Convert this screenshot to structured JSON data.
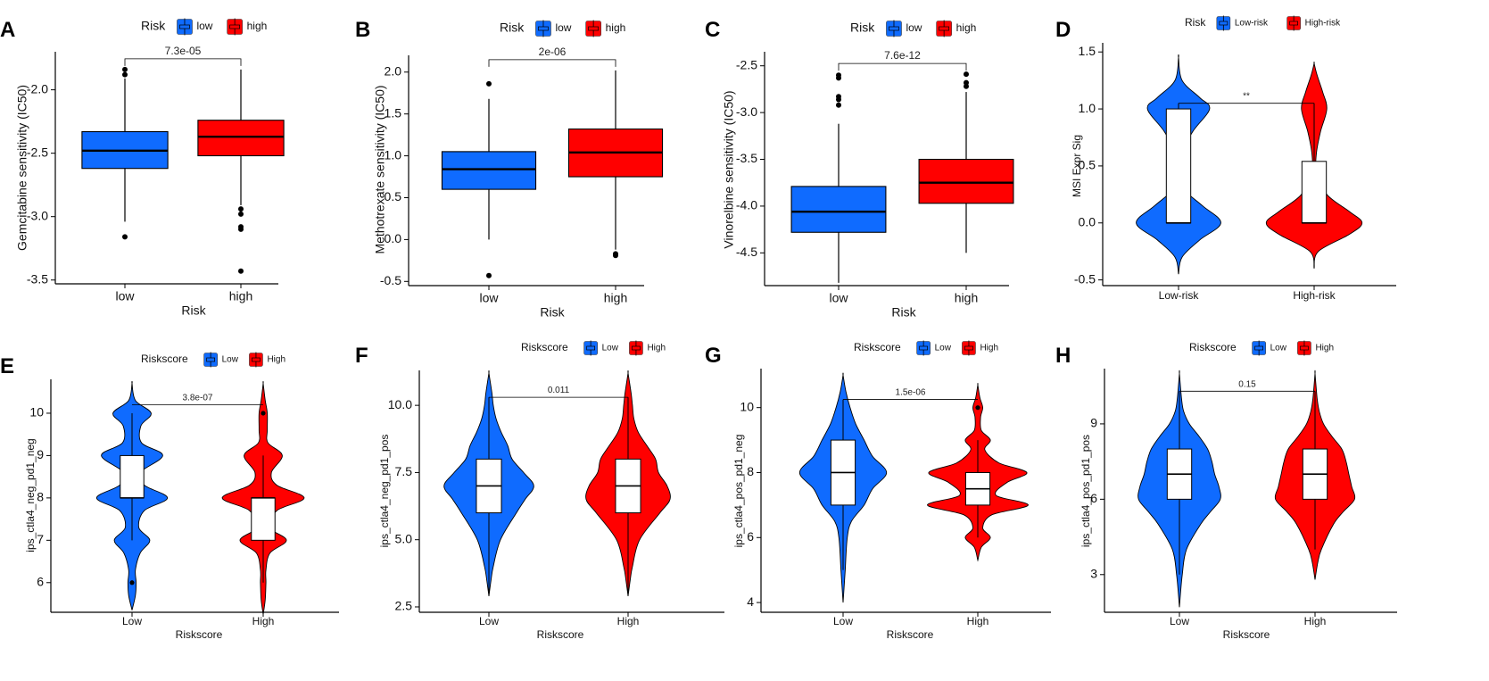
{
  "colors": {
    "low": "#0f6bff",
    "high": "#ff0000",
    "axis": "#000000"
  },
  "chart_data": [
    {
      "panel": "A",
      "type": "box",
      "legend_title": "Risk",
      "legend_labels": [
        "low",
        "high"
      ],
      "categories": [
        "low",
        "high"
      ],
      "xlabel": "Risk",
      "ylabel": "Gemcitabine sensitivity (IC50)",
      "ylim": [
        -3.53,
        -1.7
      ],
      "yticks": [
        -3.5,
        -3.0,
        -2.5,
        -2.0
      ],
      "ytick_labels": [
        "-3.5",
        "-3.0",
        "-2.5",
        "-2.0"
      ],
      "pvalue": "7.3e-05",
      "boxes": [
        {
          "q1": -2.62,
          "median": -2.48,
          "q3": -2.33,
          "whisker_low": -3.04,
          "whisker_high": -1.91,
          "outliers": [
            -1.84,
            -1.88,
            -3.16
          ]
        },
        {
          "q1": -2.52,
          "median": -2.37,
          "q3": -2.24,
          "whisker_low": -2.91,
          "whisker_high": -1.84,
          "outliers": [
            -2.94,
            -2.98,
            -3.08,
            -3.1,
            -3.43
          ]
        }
      ]
    },
    {
      "panel": "B",
      "type": "box",
      "legend_title": "Risk",
      "legend_labels": [
        "low",
        "high"
      ],
      "categories": [
        "low",
        "high"
      ],
      "xlabel": "Risk",
      "ylabel": "Methotrexate sensitivity (IC50)",
      "ylim": [
        -0.55,
        2.2
      ],
      "yticks": [
        -0.5,
        0.0,
        0.5,
        1.0,
        1.5,
        2.0
      ],
      "ytick_labels": [
        "-0.5",
        "0.0",
        "0.5",
        "1.0",
        "1.5",
        "2.0"
      ],
      "pvalue": "2e-06",
      "boxes": [
        {
          "q1": 0.6,
          "median": 0.84,
          "q3": 1.05,
          "whisker_low": 0.0,
          "whisker_high": 1.68,
          "outliers": [
            1.86,
            -0.43
          ]
        },
        {
          "q1": 0.75,
          "median": 1.04,
          "q3": 1.32,
          "whisker_low": -0.12,
          "whisker_high": 2.02,
          "outliers": [
            -0.17,
            -0.19
          ]
        }
      ]
    },
    {
      "panel": "C",
      "type": "box",
      "legend_title": "Risk",
      "legend_labels": [
        "low",
        "high"
      ],
      "categories": [
        "low",
        "high"
      ],
      "xlabel": "Risk",
      "ylabel": "Vinorelbine sensitivity (IC50)",
      "ylim": [
        -4.85,
        -2.35
      ],
      "yticks": [
        -4.5,
        -4.0,
        -3.5,
        -3.0,
        -2.5
      ],
      "ytick_labels": [
        "-4.5",
        "-4.0",
        "-3.5",
        "-3.0",
        "-2.5"
      ],
      "pvalue": "7.6e-12",
      "boxes": [
        {
          "q1": -4.28,
          "median": -4.06,
          "q3": -3.79,
          "whisker_low": -4.82,
          "whisker_high": -3.12,
          "outliers": [
            -2.6,
            -2.63,
            -2.83,
            -2.86,
            -2.92
          ]
        },
        {
          "q1": -3.97,
          "median": -3.75,
          "q3": -3.5,
          "whisker_low": -4.5,
          "whisker_high": -2.78,
          "outliers": [
            -2.59,
            -2.68,
            -2.72
          ]
        }
      ]
    },
    {
      "panel": "D",
      "type": "violin",
      "legend_title": "Risk",
      "legend_labels": [
        "Low-risk",
        "High-risk"
      ],
      "categories": [
        "Low-risk",
        "High-risk"
      ],
      "xlabel": "",
      "ylabel": "MSI Expr Sig",
      "ylim": [
        -0.55,
        1.58
      ],
      "yticks": [
        -0.5,
        0.0,
        0.5,
        1.0,
        1.5
      ],
      "ytick_labels": [
        "-0.5",
        "0.0",
        "0.5",
        "1.0",
        "1.5"
      ],
      "pvalue": "**",
      "pvalue_y": 1.05,
      "violins": [
        {
          "profile": [
            [
              -0.45,
              0
            ],
            [
              -0.3,
              0.05
            ],
            [
              -0.15,
              0.3
            ],
            [
              0.0,
              0.6
            ],
            [
              0.15,
              0.34
            ],
            [
              0.3,
              0.07
            ],
            [
              0.45,
              0.03
            ],
            [
              0.6,
              0.04
            ],
            [
              0.8,
              0.2
            ],
            [
              1.0,
              0.44
            ],
            [
              1.1,
              0.3
            ],
            [
              1.25,
              0.05
            ],
            [
              1.45,
              0
            ]
          ],
          "q1": 0.0,
          "median": 0.0,
          "q3": 1.0,
          "whisker_low": 0.0,
          "whisker_high": 1.05,
          "outliers": []
        },
        {
          "profile": [
            [
              -0.4,
              0
            ],
            [
              -0.25,
              0.06
            ],
            [
              -0.1,
              0.5
            ],
            [
              0.0,
              0.68
            ],
            [
              0.1,
              0.5
            ],
            [
              0.25,
              0.18
            ],
            [
              0.45,
              0.04
            ],
            [
              0.6,
              0.03
            ],
            [
              0.8,
              0.09
            ],
            [
              1.0,
              0.18
            ],
            [
              1.15,
              0.12
            ],
            [
              1.3,
              0.04
            ],
            [
              1.4,
              0
            ]
          ],
          "q1": 0.0,
          "median": 0.0,
          "q3": 0.54,
          "whisker_low": 0.0,
          "whisker_high": 1.05,
          "outliers": []
        }
      ]
    },
    {
      "panel": "E",
      "type": "violin",
      "legend_title": "Riskscore",
      "legend_labels": [
        "Low",
        "High"
      ],
      "categories": [
        "Low",
        "High"
      ],
      "xlabel": "Riskscore",
      "ylabel": "ips_ctla4_neg_pd1_neg",
      "ylim": [
        5.3,
        10.8
      ],
      "yticks": [
        6,
        7,
        8,
        9,
        10
      ],
      "ytick_labels": [
        "6",
        "7",
        "8",
        "9",
        "10"
      ],
      "pvalue": "3.8e-07",
      "pvalue_y": 10.2,
      "violins": [
        {
          "profile": [
            [
              5.35,
              0
            ],
            [
              5.7,
              0.05
            ],
            [
              6.0,
              0.06
            ],
            [
              6.3,
              0.05
            ],
            [
              6.7,
              0.12
            ],
            [
              7.0,
              0.26
            ],
            [
              7.3,
              0.1
            ],
            [
              7.7,
              0.18
            ],
            [
              8.0,
              0.52
            ],
            [
              8.3,
              0.18
            ],
            [
              8.6,
              0.12
            ],
            [
              9.0,
              0.45
            ],
            [
              9.3,
              0.14
            ],
            [
              9.7,
              0.13
            ],
            [
              10.0,
              0.28
            ],
            [
              10.3,
              0.05
            ],
            [
              10.7,
              0
            ]
          ],
          "q1": 8.0,
          "median": 8.0,
          "q3": 9.0,
          "whisker_low": 7.0,
          "whisker_high": 10.0,
          "outliers": [
            6.0
          ]
        },
        {
          "profile": [
            [
              5.25,
              0
            ],
            [
              5.6,
              0.03
            ],
            [
              6.0,
              0.04
            ],
            [
              6.3,
              0.04
            ],
            [
              6.7,
              0.1
            ],
            [
              7.0,
              0.34
            ],
            [
              7.3,
              0.1
            ],
            [
              7.7,
              0.2
            ],
            [
              8.0,
              0.6
            ],
            [
              8.3,
              0.2
            ],
            [
              8.6,
              0.12
            ],
            [
              9.0,
              0.28
            ],
            [
              9.3,
              0.07
            ],
            [
              9.6,
              0.06
            ],
            [
              10.0,
              0.06
            ],
            [
              10.3,
              0.03
            ],
            [
              10.7,
              0
            ]
          ],
          "q1": 7.0,
          "median": 8.0,
          "q3": 8.0,
          "whisker_low": 6.0,
          "whisker_high": 9.0,
          "outliers": [
            10.0
          ]
        }
      ]
    },
    {
      "panel": "F",
      "type": "violin",
      "legend_title": "Riskscore",
      "legend_labels": [
        "Low",
        "High"
      ],
      "categories": [
        "Low",
        "High"
      ],
      "xlabel": "Riskscore",
      "ylabel": "ips_ctla4_neg_pd1_pos",
      "ylim": [
        2.3,
        11.3
      ],
      "yticks": [
        2.5,
        5.0,
        7.5,
        10.0
      ],
      "ytick_labels": [
        "2.5",
        "5.0",
        "7.5",
        "10.0"
      ],
      "pvalue": "0.011",
      "pvalue_y": 10.3,
      "violins": [
        {
          "profile": [
            [
              2.9,
              0
            ],
            [
              3.5,
              0.03
            ],
            [
              4.0,
              0.06
            ],
            [
              5.0,
              0.16
            ],
            [
              6.0,
              0.38
            ],
            [
              6.5,
              0.5
            ],
            [
              7.0,
              0.62
            ],
            [
              7.5,
              0.48
            ],
            [
              8.0,
              0.32
            ],
            [
              8.5,
              0.26
            ],
            [
              9.0,
              0.17
            ],
            [
              9.5,
              0.1
            ],
            [
              10.0,
              0.06
            ],
            [
              10.5,
              0.04
            ],
            [
              11.2,
              0
            ]
          ],
          "q1": 6.0,
          "median": 7.0,
          "q3": 8.0,
          "whisker_low": 3.0,
          "whisker_high": 10.3,
          "outliers": []
        },
        {
          "profile": [
            [
              2.9,
              0
            ],
            [
              3.5,
              0.03
            ],
            [
              4.0,
              0.06
            ],
            [
              5.0,
              0.16
            ],
            [
              6.0,
              0.44
            ],
            [
              6.5,
              0.58
            ],
            [
              7.0,
              0.54
            ],
            [
              7.5,
              0.42
            ],
            [
              8.0,
              0.38
            ],
            [
              8.5,
              0.26
            ],
            [
              9.0,
              0.14
            ],
            [
              9.5,
              0.08
            ],
            [
              10.0,
              0.06
            ],
            [
              10.5,
              0.04
            ],
            [
              11.2,
              0
            ]
          ],
          "q1": 6.0,
          "median": 7.0,
          "q3": 8.0,
          "whisker_low": 3.0,
          "whisker_high": 10.3,
          "outliers": []
        }
      ]
    },
    {
      "panel": "G",
      "type": "violin",
      "legend_title": "Riskscore",
      "legend_labels": [
        "Low",
        "High"
      ],
      "categories": [
        "Low",
        "High"
      ],
      "xlabel": "Riskscore",
      "ylabel": "ips_ctla4_pos_pd1_neg",
      "ylim": [
        3.7,
        11.2
      ],
      "yticks": [
        4,
        6,
        8,
        10
      ],
      "ytick_labels": [
        "4",
        "6",
        "8",
        "10"
      ],
      "pvalue": "1.5e-06",
      "pvalue_y": 10.25,
      "violins": [
        {
          "profile": [
            [
              4.0,
              0
            ],
            [
              5.0,
              0.03
            ],
            [
              6.0,
              0.06
            ],
            [
              6.5,
              0.12
            ],
            [
              7.0,
              0.3
            ],
            [
              7.5,
              0.42
            ],
            [
              8.0,
              0.62
            ],
            [
              8.5,
              0.42
            ],
            [
              9.0,
              0.3
            ],
            [
              9.5,
              0.18
            ],
            [
              10.0,
              0.1
            ],
            [
              10.5,
              0.04
            ],
            [
              11.0,
              0
            ]
          ],
          "q1": 7.0,
          "median": 8.0,
          "q3": 9.0,
          "whisker_low": 5.0,
          "whisker_high": 10.25,
          "outliers": []
        },
        {
          "profile": [
            [
              5.3,
              0
            ],
            [
              5.7,
              0.05
            ],
            [
              6.0,
              0.18
            ],
            [
              6.3,
              0.07
            ],
            [
              6.7,
              0.2
            ],
            [
              7.0,
              0.72
            ],
            [
              7.3,
              0.26
            ],
            [
              7.7,
              0.42
            ],
            [
              8.0,
              0.7
            ],
            [
              8.3,
              0.3
            ],
            [
              8.7,
              0.1
            ],
            [
              9.0,
              0.18
            ],
            [
              9.3,
              0.05
            ],
            [
              9.7,
              0.04
            ],
            [
              10.0,
              0.07
            ],
            [
              10.3,
              0.03
            ],
            [
              10.7,
              0
            ]
          ],
          "q1": 7.0,
          "median": 7.5,
          "q3": 8.0,
          "whisker_low": 6.0,
          "whisker_high": 9.0,
          "outliers": [
            10.0
          ]
        }
      ]
    },
    {
      "panel": "H",
      "type": "violin",
      "legend_title": "Riskscore",
      "legend_labels": [
        "Low",
        "High"
      ],
      "categories": [
        "Low",
        "High"
      ],
      "xlabel": "Riskscore",
      "ylabel": "ips_ctla4_pos_pd1_pos",
      "ylim": [
        1.5,
        11.2
      ],
      "yticks": [
        3,
        6,
        9
      ],
      "ytick_labels": [
        "3",
        "6",
        "9"
      ],
      "pvalue": "0.15",
      "pvalue_y": 10.3,
      "violins": [
        {
          "profile": [
            [
              1.7,
              0
            ],
            [
              3.0,
              0.04
            ],
            [
              4.0,
              0.1
            ],
            [
              5.0,
              0.3
            ],
            [
              5.5,
              0.44
            ],
            [
              6.0,
              0.58
            ],
            [
              6.5,
              0.56
            ],
            [
              7.0,
              0.5
            ],
            [
              7.5,
              0.46
            ],
            [
              8.0,
              0.4
            ],
            [
              8.5,
              0.28
            ],
            [
              9.0,
              0.14
            ],
            [
              9.5,
              0.06
            ],
            [
              10.0,
              0.03
            ],
            [
              11.0,
              0
            ]
          ],
          "q1": 6.0,
          "median": 7.0,
          "q3": 8.0,
          "whisker_low": 3.0,
          "whisker_high": 10.3,
          "outliers": []
        },
        {
          "profile": [
            [
              2.8,
              0
            ],
            [
              3.5,
              0.04
            ],
            [
              4.0,
              0.09
            ],
            [
              5.0,
              0.26
            ],
            [
              5.5,
              0.4
            ],
            [
              6.0,
              0.56
            ],
            [
              6.5,
              0.52
            ],
            [
              7.0,
              0.48
            ],
            [
              7.5,
              0.44
            ],
            [
              8.0,
              0.38
            ],
            [
              8.5,
              0.24
            ],
            [
              9.0,
              0.12
            ],
            [
              9.5,
              0.06
            ],
            [
              10.0,
              0.03
            ],
            [
              11.0,
              0
            ]
          ],
          "q1": 6.0,
          "median": 7.0,
          "q3": 8.0,
          "whisker_low": 4.0,
          "whisker_high": 10.3,
          "outliers": []
        }
      ]
    }
  ]
}
